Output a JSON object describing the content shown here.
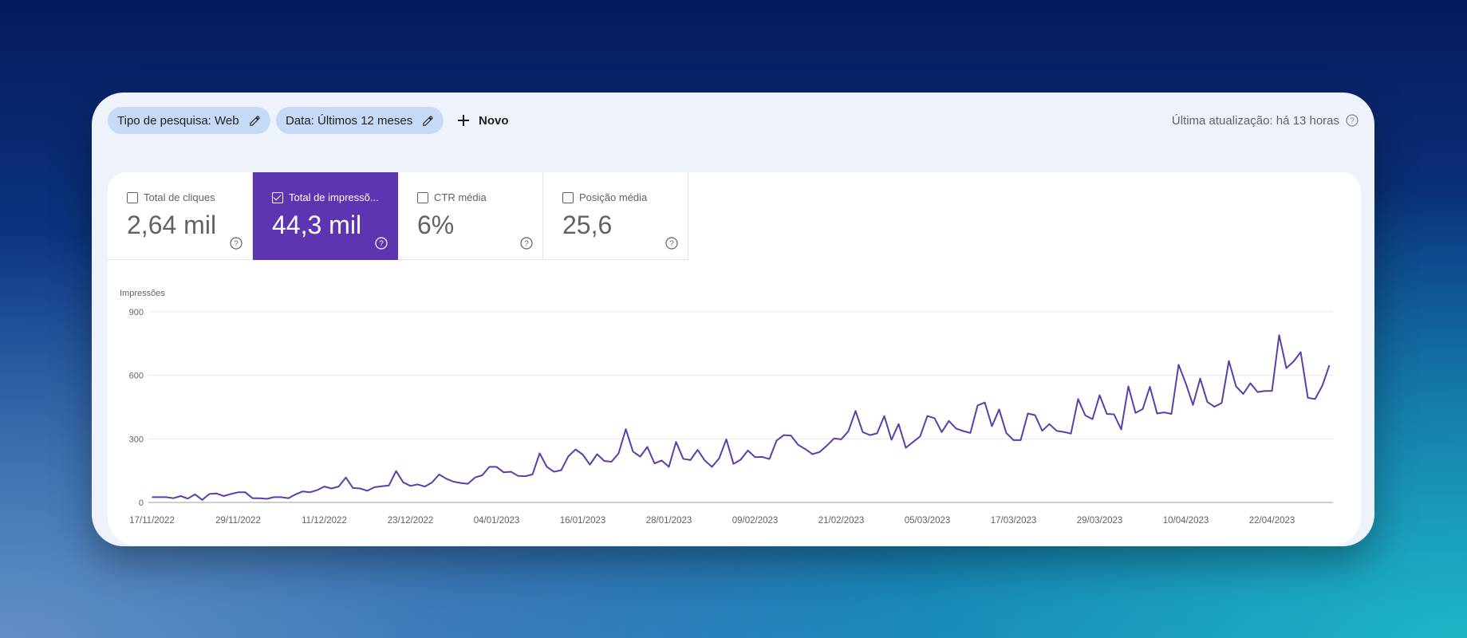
{
  "toolbar": {
    "search_type_label": "Tipo de pesquisa: Web",
    "date_label": "Data: Últimos 12 meses",
    "new_label": "Novo",
    "last_update": "Última atualização: há 13 horas"
  },
  "metrics": [
    {
      "label": "Total de cliques",
      "value": "2,64 mil",
      "checked": false
    },
    {
      "label": "Total de impressõ...",
      "value": "44,3 mil",
      "checked": true
    },
    {
      "label": "CTR média",
      "value": "6%",
      "checked": false
    },
    {
      "label": "Posição média",
      "value": "25,6",
      "checked": false
    }
  ],
  "colors": {
    "accent": "#5e35b1",
    "line": "#5c3ea8",
    "chip": "#c6daf7"
  },
  "chart_data": {
    "type": "line",
    "ylabel": "Impressões",
    "ylim": [
      0,
      900
    ],
    "yticks": [
      0,
      300,
      600,
      900
    ],
    "xtick_labels": [
      "17/11/2022",
      "29/11/2022",
      "11/12/2022",
      "23/12/2022",
      "04/01/2023",
      "16/01/2023",
      "28/01/2023",
      "09/02/2023",
      "21/02/2023",
      "05/03/2023",
      "17/03/2023",
      "29/03/2023",
      "10/04/2023",
      "22/04/2023"
    ],
    "xtick_indices": [
      0,
      12,
      24,
      36,
      48,
      60,
      72,
      84,
      96,
      108,
      120,
      132,
      144,
      156
    ],
    "series": [
      {
        "values": [
          25,
          25,
          25,
          20,
          30,
          18,
          38,
          12,
          40,
          42,
          30,
          40,
          48,
          48,
          20,
          20,
          17,
          25,
          25,
          20,
          38,
          52,
          48,
          58,
          75,
          66,
          75,
          118,
          68,
          66,
          55,
          72,
          76,
          80,
          148,
          95,
          78,
          85,
          75,
          94,
          132,
          112,
          98,
          92,
          88,
          118,
          128,
          168,
          168,
          142,
          145,
          125,
          124,
          132,
          232,
          168,
          145,
          152,
          218,
          250,
          226,
          178,
          228,
          196,
          192,
          232,
          346,
          240,
          216,
          262,
          184,
          198,
          168,
          286,
          206,
          200,
          248,
          198,
          168,
          208,
          298,
          182,
          202,
          245,
          214,
          215,
          205,
          292,
          318,
          316,
          272,
          252,
          228,
          238,
          268,
          302,
          298,
          336,
          432,
          332,
          318,
          326,
          408,
          296,
          370,
          258,
          285,
          312,
          408,
          398,
          332,
          385,
          349,
          337,
          328,
          458,
          472,
          360,
          439,
          328,
          294,
          294,
          420,
          412,
          338,
          370,
          338,
          333,
          325,
          488,
          411,
          393,
          506,
          418,
          416,
          345,
          548,
          423,
          441,
          546,
          420,
          425,
          418,
          650,
          562,
          460,
          585,
          474,
          452,
          470,
          668,
          548,
          512,
          563,
          521,
          526,
          526,
          790,
          634,
          665,
          710,
          494,
          488,
          550,
          648
        ]
      }
    ]
  }
}
